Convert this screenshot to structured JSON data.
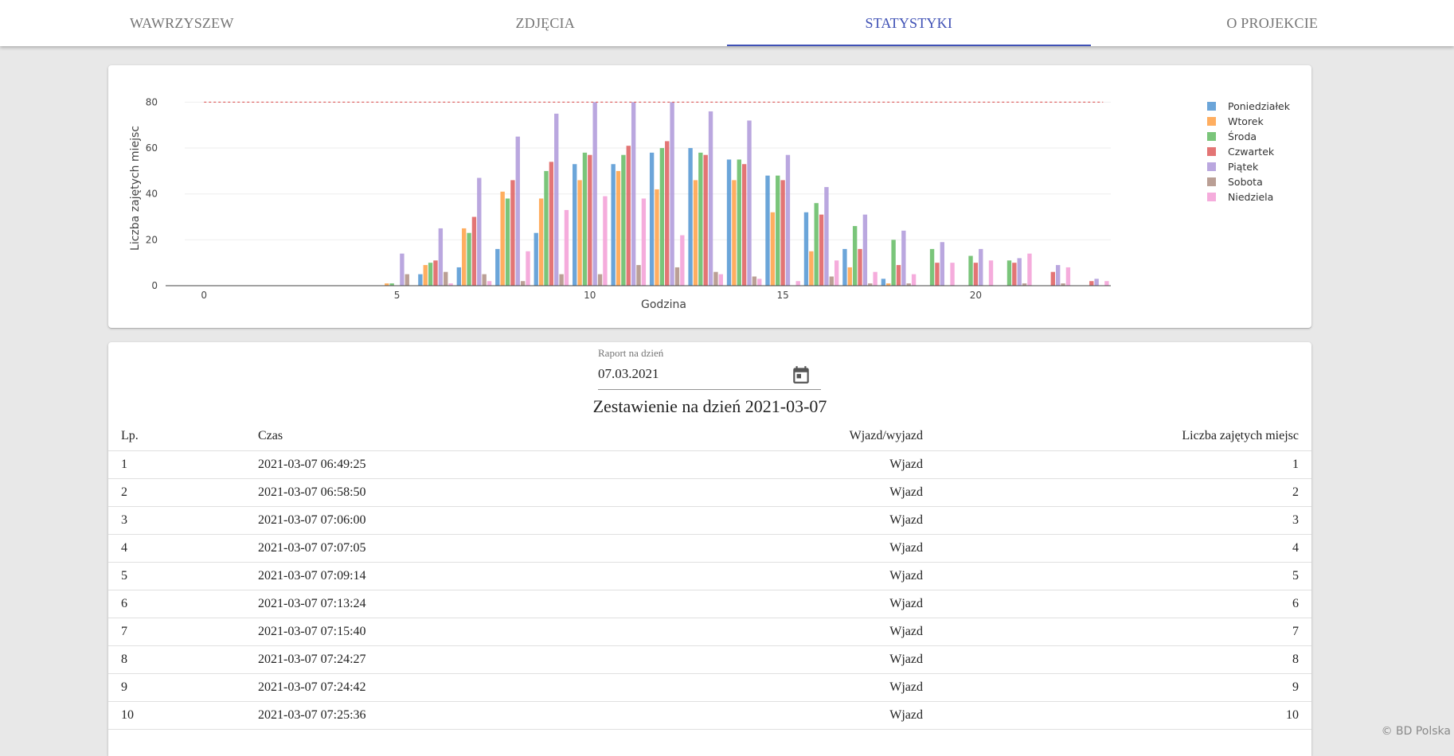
{
  "nav": {
    "tabs": [
      {
        "label": "WAWRZYSZEW",
        "active": false
      },
      {
        "label": "ZDJĘCIA",
        "active": false
      },
      {
        "label": "STATYSTYKI",
        "active": true
      },
      {
        "label": "O PROJEKCIE",
        "active": false
      }
    ]
  },
  "colors": {
    "accent": "#3f51b5",
    "capacity_line": "#e06666"
  },
  "chart_data": {
    "type": "bar",
    "xlabel": "Godzina",
    "ylabel": "Liczba zajętych miejsc",
    "x_ticks": [
      0,
      5,
      10,
      15,
      20
    ],
    "y_ticks": [
      0,
      20,
      40,
      60,
      80
    ],
    "xlim": [
      -0.5,
      23.5
    ],
    "ylim": [
      0,
      85
    ],
    "capacity_line": 80,
    "legend_position": "right",
    "grid": true,
    "categories": [
      0,
      1,
      2,
      3,
      4,
      5,
      6,
      7,
      8,
      9,
      10,
      11,
      12,
      13,
      14,
      15,
      16,
      17,
      18,
      19,
      20,
      21,
      22,
      23
    ],
    "series": [
      {
        "name": "Poniedziałek",
        "color": "#5b9bd5",
        "values": [
          0,
          0,
          0,
          0,
          0,
          0,
          5,
          8,
          16,
          23,
          53,
          53,
          58,
          60,
          55,
          48,
          32,
          16,
          3,
          0,
          0,
          0,
          0,
          0
        ]
      },
      {
        "name": "Wtorek",
        "color": "#ffa54f",
        "values": [
          0,
          0,
          0,
          0,
          0,
          1,
          9,
          25,
          41,
          38,
          46,
          50,
          42,
          46,
          46,
          32,
          15,
          8,
          1,
          0,
          0,
          0,
          0,
          0
        ]
      },
      {
        "name": "Środa",
        "color": "#6cbf6c",
        "values": [
          0,
          0,
          0,
          0,
          0,
          1,
          10,
          23,
          38,
          50,
          58,
          57,
          60,
          58,
          55,
          48,
          36,
          26,
          20,
          16,
          13,
          11,
          0,
          0
        ]
      },
      {
        "name": "Czwartek",
        "color": "#e06666",
        "values": [
          0,
          0,
          0,
          0,
          0,
          0,
          11,
          30,
          46,
          54,
          57,
          61,
          63,
          57,
          53,
          46,
          31,
          16,
          9,
          10,
          10,
          10,
          6,
          2
        ]
      },
      {
        "name": "Piątek",
        "color": "#b39ddb",
        "values": [
          0,
          0,
          0,
          0,
          0,
          14,
          25,
          47,
          65,
          75,
          80,
          80,
          80,
          76,
          72,
          57,
          43,
          31,
          24,
          19,
          16,
          12,
          9,
          3
        ]
      },
      {
        "name": "Sobota",
        "color": "#b3958a",
        "values": [
          0,
          0,
          0,
          0,
          0,
          5,
          6,
          5,
          2,
          5,
          5,
          9,
          8,
          6,
          4,
          0,
          4,
          1,
          1,
          0,
          0,
          1,
          1,
          0
        ]
      },
      {
        "name": "Niedziela",
        "color": "#f4a3d8",
        "values": [
          0,
          0,
          0,
          0,
          0,
          0,
          1,
          2,
          15,
          33,
          39,
          38,
          22,
          5,
          3,
          2,
          11,
          6,
          5,
          10,
          11,
          14,
          8,
          2
        ]
      }
    ]
  },
  "report": {
    "date_label": "Raport na dzień",
    "date_value": "07.03.2021",
    "title": "Zestawienie na dzień 2021-03-07",
    "headers": [
      "Lp.",
      "Czas",
      "Wjazd/wyjazd",
      "Liczba zajętych miejsc"
    ],
    "rows": [
      [
        "1",
        "2021-03-07 06:49:25",
        "Wjazd",
        "1"
      ],
      [
        "2",
        "2021-03-07 06:58:50",
        "Wjazd",
        "2"
      ],
      [
        "3",
        "2021-03-07 07:06:00",
        "Wjazd",
        "3"
      ],
      [
        "4",
        "2021-03-07 07:07:05",
        "Wjazd",
        "4"
      ],
      [
        "5",
        "2021-03-07 07:09:14",
        "Wjazd",
        "5"
      ],
      [
        "6",
        "2021-03-07 07:13:24",
        "Wjazd",
        "6"
      ],
      [
        "7",
        "2021-03-07 07:15:40",
        "Wjazd",
        "7"
      ],
      [
        "8",
        "2021-03-07 07:24:27",
        "Wjazd",
        "8"
      ],
      [
        "9",
        "2021-03-07 07:24:42",
        "Wjazd",
        "9"
      ],
      [
        "10",
        "2021-03-07 07:25:36",
        "Wjazd",
        "10"
      ]
    ]
  },
  "footer": {
    "watermark": "© BD Polska"
  }
}
